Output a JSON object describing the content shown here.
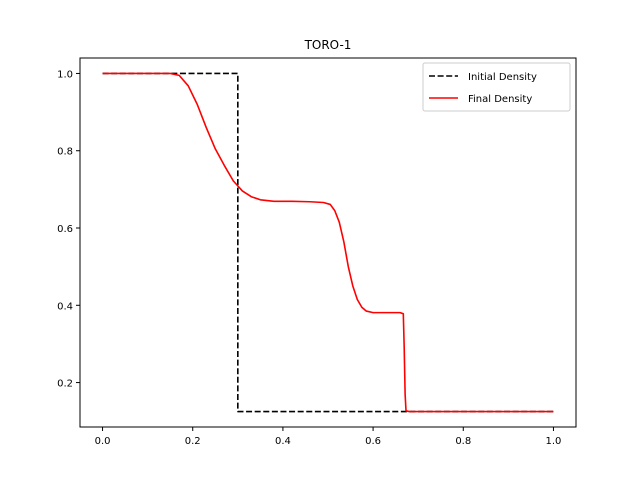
{
  "chart_data": {
    "type": "line",
    "title": "TORO-1",
    "xlabel": "",
    "ylabel": "",
    "xlim": [
      -0.05,
      1.05
    ],
    "ylim": [
      0.085,
      1.04
    ],
    "xticks": [
      0.0,
      0.2,
      0.4,
      0.6,
      0.8,
      1.0
    ],
    "xtick_labels": [
      "0.0",
      "0.2",
      "0.4",
      "0.6",
      "0.8",
      "1.0"
    ],
    "yticks": [
      0.2,
      0.4,
      0.6,
      0.8,
      1.0
    ],
    "ytick_labels": [
      "0.2",
      "0.4",
      "0.6",
      "0.8",
      "1.0"
    ],
    "grid": false,
    "legend_position": "top-right",
    "series": [
      {
        "name": "Initial Density",
        "color": "#000000",
        "style": "dashed",
        "x": [
          0.0,
          0.3,
          0.3,
          1.0
        ],
        "y": [
          1.0,
          1.0,
          0.125,
          0.125
        ]
      },
      {
        "name": "Final Density",
        "color": "#ff0000",
        "style": "solid",
        "x": [
          0.0,
          0.15,
          0.17,
          0.19,
          0.21,
          0.23,
          0.25,
          0.27,
          0.29,
          0.31,
          0.33,
          0.35,
          0.38,
          0.42,
          0.46,
          0.49,
          0.505,
          0.515,
          0.525,
          0.535,
          0.545,
          0.555,
          0.565,
          0.575,
          0.585,
          0.6,
          0.62,
          0.66,
          0.667,
          0.669,
          0.671,
          0.673,
          0.68,
          0.75,
          1.0
        ],
        "y": [
          1.0,
          1.0,
          0.995,
          0.968,
          0.92,
          0.86,
          0.805,
          0.762,
          0.722,
          0.696,
          0.681,
          0.673,
          0.669,
          0.669,
          0.668,
          0.666,
          0.661,
          0.645,
          0.615,
          0.565,
          0.5,
          0.45,
          0.415,
          0.395,
          0.385,
          0.381,
          0.381,
          0.381,
          0.378,
          0.29,
          0.17,
          0.127,
          0.125,
          0.125,
          0.125
        ]
      }
    ]
  }
}
